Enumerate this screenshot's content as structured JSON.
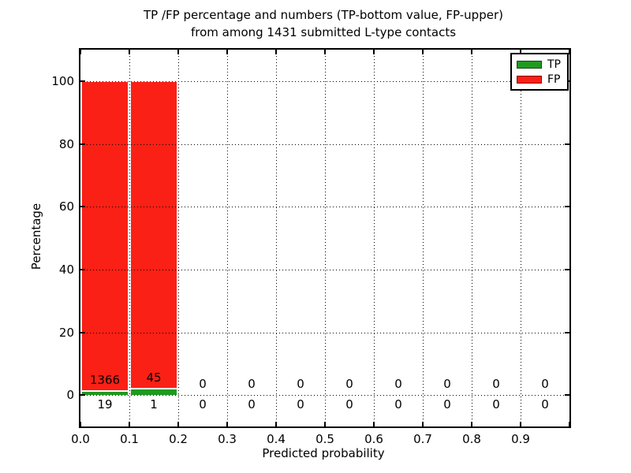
{
  "figure": {
    "title_line1": "TP /FP percentage and numbers (TP-bottom value, FP-upper)",
    "title_line2": "from among 1431 submitted L-type contacts"
  },
  "legend": {
    "position": "upper right",
    "items": [
      {
        "label": "TP",
        "color": "#1f9a1f"
      },
      {
        "label": "FP",
        "color": "#fb2015"
      }
    ]
  },
  "chart_data": {
    "type": "bar",
    "stacked": true,
    "normalized_to": 100,
    "grid": "dotted",
    "legend_position": "upper right",
    "title": "TP /FP percentage and numbers (TP-bottom value, FP-upper) from among 1431 submitted L-type contacts",
    "xlabel": "Predicted probability",
    "ylabel": "Percentage",
    "xlim": [
      0.0,
      1.0
    ],
    "ylim": [
      -10,
      110
    ],
    "bin_width": 0.1,
    "bin_starts": [
      0.0,
      0.1,
      0.2,
      0.3,
      0.4,
      0.5,
      0.6,
      0.7,
      0.8,
      0.9
    ],
    "xtick_values": [
      0.0,
      0.1,
      0.2,
      0.3,
      0.4,
      0.5,
      0.6,
      0.7,
      0.8,
      0.9
    ],
    "xtick_labels": [
      "0.0",
      "0.1",
      "0.2",
      "0.3",
      "0.4",
      "0.5",
      "0.6",
      "0.7",
      "0.8",
      "0.9"
    ],
    "ytick_values": [
      0,
      20,
      40,
      60,
      80,
      100
    ],
    "ytick_labels": [
      "0",
      "20",
      "40",
      "60",
      "80",
      "100"
    ],
    "total_contacts": 1431,
    "series": [
      {
        "name": "TP",
        "color": "#1f9a1f",
        "values": [
          19,
          1,
          0,
          0,
          0,
          0,
          0,
          0,
          0,
          0
        ]
      },
      {
        "name": "FP",
        "color": "#fb2015",
        "values": [
          1366,
          45,
          0,
          0,
          0,
          0,
          0,
          0,
          0,
          0
        ]
      }
    ],
    "bar_label_rows": {
      "upper_row_series": "FP",
      "lower_row_series": "TP",
      "upper_labels": [
        "1366",
        "45",
        "0",
        "0",
        "0",
        "0",
        "0",
        "0",
        "0",
        "0"
      ],
      "lower_labels": [
        "19",
        "1",
        "0",
        "0",
        "0",
        "0",
        "0",
        "0",
        "0",
        "0"
      ]
    }
  }
}
